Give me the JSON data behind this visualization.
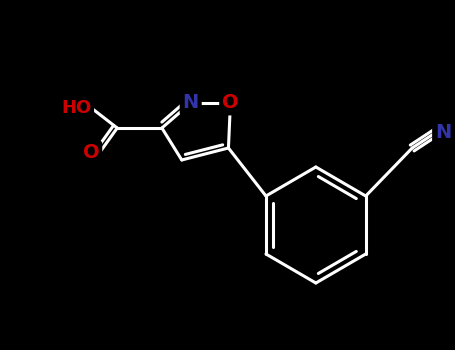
{
  "background_color": "#000000",
  "bond_color": "#ffffff",
  "atom_colors": {
    "O": "#cc0000",
    "N": "#3333aa",
    "C": "#ffffff"
  },
  "bond_width": 2.2,
  "font_size_atom": 13,
  "figsize": [
    4.55,
    3.5
  ],
  "dpi": 100
}
